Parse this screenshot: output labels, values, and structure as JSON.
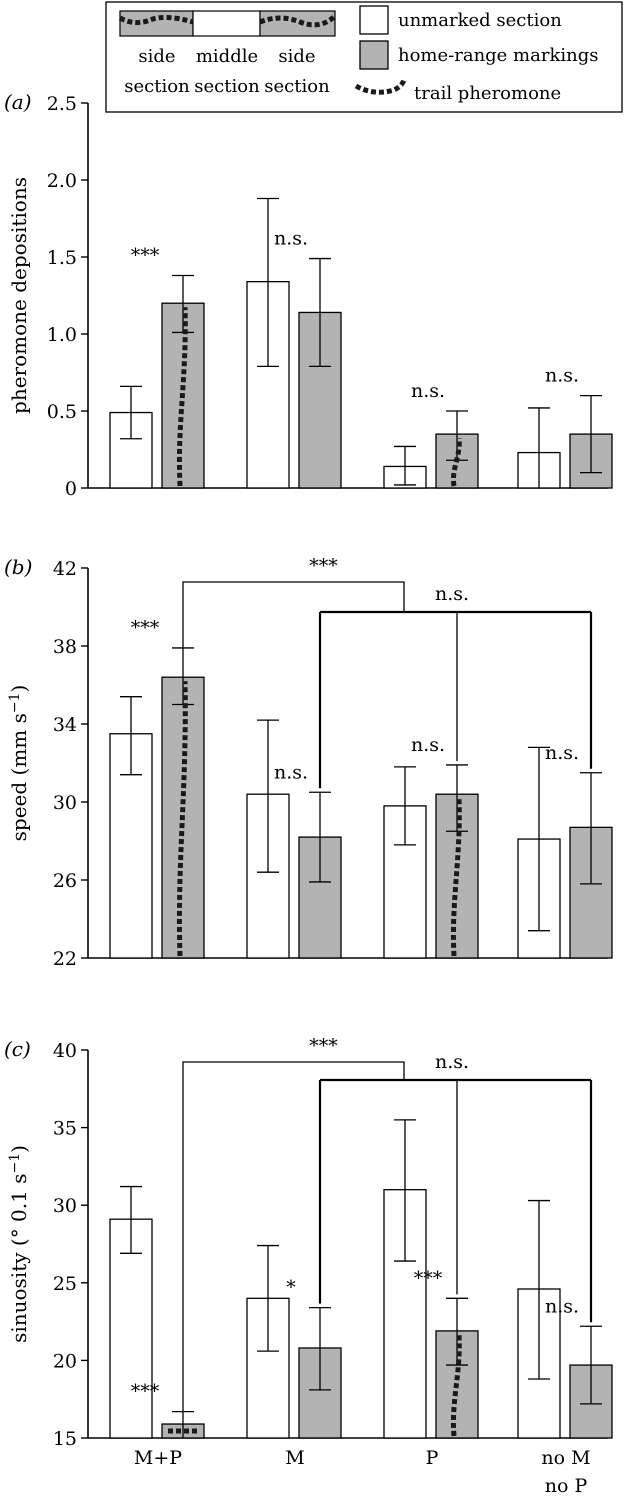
{
  "legend": {
    "side_label": "side\nsection",
    "middle_label": "middle\nsection",
    "side_label_2": "side\nsection",
    "entries": [
      {
        "label": "unmarked section",
        "style": "white"
      },
      {
        "label": "home-range markings",
        "style": "grey"
      },
      {
        "label": "trail pheromone",
        "style": "dotted"
      }
    ]
  },
  "colors": {
    "unmarked": "#ffffff",
    "marked": "#b3b3b3",
    "trail": "#1a1a1a"
  },
  "categories": [
    "M+P",
    "M",
    "P",
    "no M\nno P"
  ],
  "chart_data": [
    {
      "type": "bar",
      "panel_label": "(a)",
      "ylabel": "pheromone depositions",
      "ylim": [
        0,
        2.5
      ],
      "yticks": [
        0,
        0.5,
        1.0,
        1.5,
        2.0,
        2.5
      ],
      "ytick_labels": [
        "0",
        "0.5",
        "1.0",
        "1.5",
        "2.0",
        "2.5"
      ],
      "series": [
        {
          "name": "unmarked section",
          "values": [
            0.49,
            1.34,
            0.14,
            0.23
          ],
          "err_low": [
            0.32,
            0.79,
            0.02,
            0.0
          ],
          "err_high": [
            0.66,
            1.88,
            0.27,
            0.52
          ]
        },
        {
          "name": "home-range markings",
          "values": [
            1.2,
            1.14,
            0.35,
            0.35
          ],
          "err_low": [
            1.01,
            0.79,
            0.18,
            0.1
          ],
          "err_high": [
            1.38,
            1.49,
            0.5,
            0.6
          ]
        }
      ],
      "trail": [
        true,
        false,
        true,
        false
      ],
      "annotations": [
        "***",
        "n.s.",
        "n.s.",
        "n.s."
      ],
      "brackets": []
    },
    {
      "type": "bar",
      "panel_label": "(b)",
      "ylabel": "speed (mm s−1)",
      "ylim": [
        22,
        42
      ],
      "yticks": [
        22,
        26,
        30,
        34,
        38,
        42
      ],
      "ytick_labels": [
        "22",
        "26",
        "30",
        "34",
        "38",
        "42"
      ],
      "series": [
        {
          "name": "unmarked section",
          "values": [
            33.5,
            30.4,
            29.8,
            28.1
          ],
          "err_low": [
            31.4,
            26.4,
            27.8,
            23.4
          ],
          "err_high": [
            35.4,
            34.2,
            31.8,
            32.8
          ]
        },
        {
          "name": "home-range markings",
          "values": [
            36.4,
            28.2,
            30.4,
            28.7
          ],
          "err_low": [
            35.0,
            25.9,
            28.5,
            25.8
          ],
          "err_high": [
            37.9,
            30.5,
            31.9,
            31.5
          ]
        }
      ],
      "trail": [
        true,
        false,
        true,
        false
      ],
      "annotations": [
        "***",
        "n.s.",
        "n.s.",
        "n.s."
      ],
      "brackets": [
        {
          "label": "***"
        },
        {
          "label": "n.s."
        }
      ]
    },
    {
      "type": "bar",
      "panel_label": "(c)",
      "ylabel": "sinuosity (° 0.1 s−1)",
      "ylim": [
        15,
        40
      ],
      "yticks": [
        15,
        20,
        25,
        30,
        35,
        40
      ],
      "ytick_labels": [
        "15",
        "20",
        "25",
        "30",
        "35",
        "40"
      ],
      "series": [
        {
          "name": "unmarked section",
          "values": [
            29.1,
            24.0,
            31.0,
            24.6
          ],
          "err_low": [
            26.9,
            20.6,
            26.4,
            18.8
          ],
          "err_high": [
            31.2,
            27.4,
            35.5,
            30.3
          ]
        },
        {
          "name": "home-range markings",
          "values": [
            15.9,
            20.8,
            21.9,
            19.7
          ],
          "err_low": [
            15.0,
            18.1,
            19.7,
            17.2
          ],
          "err_high": [
            16.7,
            23.4,
            24.0,
            22.2
          ]
        }
      ],
      "trail": [
        true,
        false,
        true,
        false
      ],
      "annotations": [
        "***",
        "*",
        "***",
        "n.s."
      ],
      "brackets": [
        {
          "label": "***"
        },
        {
          "label": "n.s."
        }
      ]
    }
  ]
}
